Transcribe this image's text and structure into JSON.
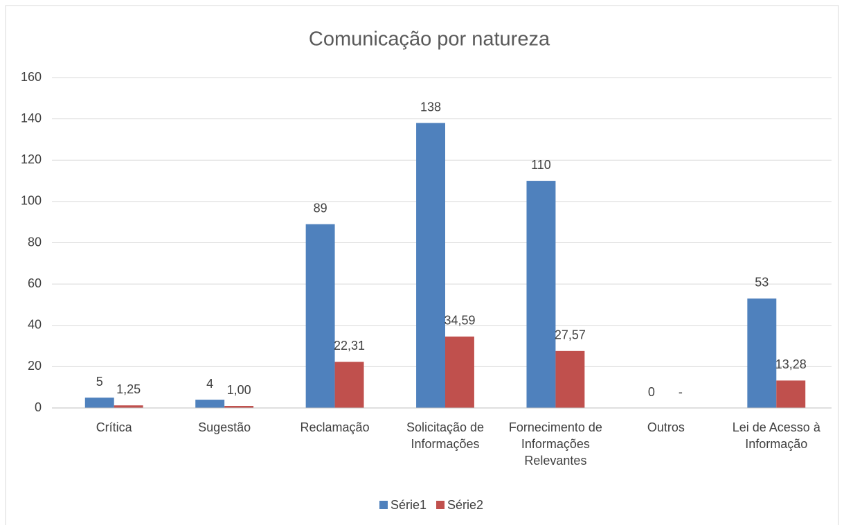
{
  "chart_data": {
    "type": "bar",
    "title": "Comunicação por natureza",
    "categories": [
      "Crítica",
      "Sugestão",
      "Reclamação",
      "Solicitação de Informações",
      "Fornecimento de Informações Relevantes",
      "Outros",
      "Lei de Acesso à Informação"
    ],
    "series": [
      {
        "name": "Série1",
        "color": "#4f81bd",
        "values": [
          5,
          4,
          89,
          138,
          110,
          0,
          53
        ]
      },
      {
        "name": "Série2",
        "color": "#c0504d",
        "values": [
          1.25,
          1.0,
          22.31,
          34.59,
          27.57,
          0,
          13.28
        ],
        "value_labels": [
          "1,25",
          "1,00",
          "22,31",
          "34,59",
          "27,57",
          "-",
          "13,28"
        ]
      }
    ],
    "ylim": [
      0,
      160
    ],
    "yticks": [
      0,
      20,
      40,
      60,
      80,
      100,
      120,
      140,
      160
    ],
    "grid": true,
    "legend": "bottom"
  }
}
